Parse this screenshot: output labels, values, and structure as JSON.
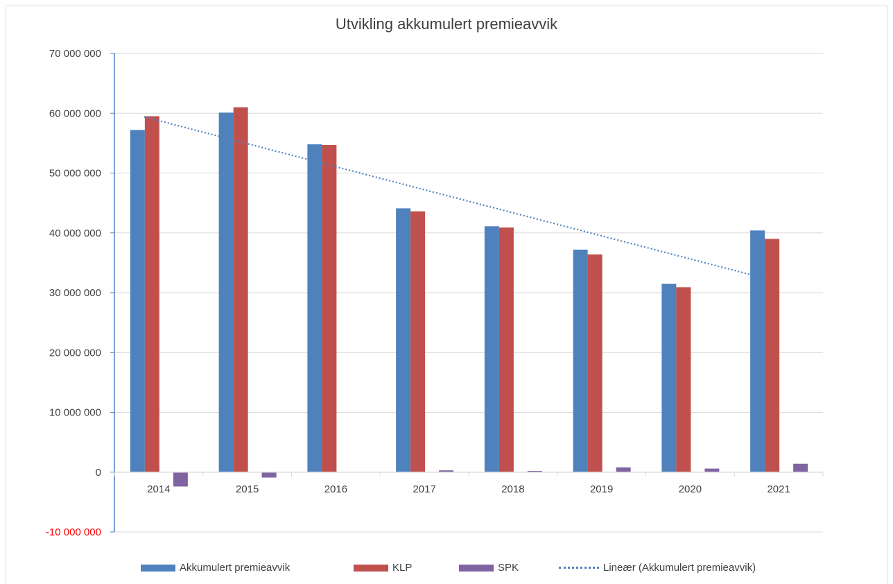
{
  "chart_data": {
    "type": "bar",
    "title": "Utvikling akkumulert premieavvik",
    "categories": [
      "2014",
      "2015",
      "2016",
      "2017",
      "2018",
      "2019",
      "2020",
      "2021"
    ],
    "series": [
      {
        "name": "Akkumulert premieavvik",
        "color": "#4f81bd",
        "values": [
          57200000,
          60100000,
          54800000,
          44100000,
          41100000,
          37200000,
          31500000,
          40400000
        ]
      },
      {
        "name": "KLP",
        "color": "#c0504d",
        "values": [
          59500000,
          61000000,
          54700000,
          43600000,
          40900000,
          36400000,
          30900000,
          39000000
        ]
      },
      {
        "name": "SPK",
        "color": "#8064a2",
        "values": [
          -2400000,
          -900000,
          0,
          300000,
          200000,
          800000,
          600000,
          1400000
        ]
      }
    ],
    "trendline": {
      "name": "Lineær (Akkumulert premieavvik)",
      "color": "#4f81bd",
      "style": "dotted",
      "start": 59400000,
      "end": 32400000
    },
    "ylim": [
      -10000000,
      70000000
    ],
    "yticks": [
      {
        "value": 70000000,
        "label": "70 000 000"
      },
      {
        "value": 60000000,
        "label": "60 000 000"
      },
      {
        "value": 50000000,
        "label": "50 000 000"
      },
      {
        "value": 40000000,
        "label": "40 000 000"
      },
      {
        "value": 30000000,
        "label": "30 000 000"
      },
      {
        "value": 20000000,
        "label": "20 000 000"
      },
      {
        "value": 10000000,
        "label": "10 000 000"
      },
      {
        "value": 0,
        "label": "0"
      },
      {
        "value": -10000000,
        "label": "-10 000 000"
      }
    ],
    "negative_label_color": "#ff0000",
    "grid": true,
    "legend_position": "bottom"
  }
}
